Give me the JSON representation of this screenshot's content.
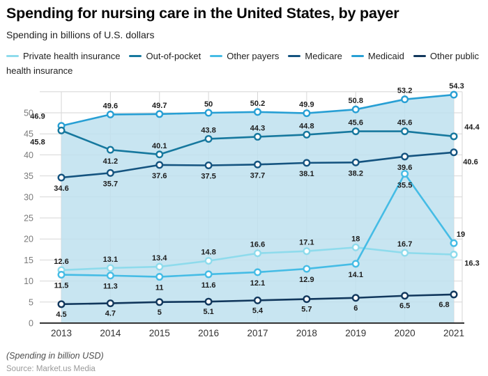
{
  "header": {
    "title": "Spending for nursing care in the United States, by payer",
    "subtitle": "Spending in billions of U.S. dollars"
  },
  "footer": {
    "note": "(Spending in billion USD)",
    "source": "Source: Market.us Media"
  },
  "chart_data": {
    "type": "line",
    "title": "Spending for nursing care in the United States, by payer",
    "subtitle": "Spending in billions of U.S. dollars",
    "x": [
      2013,
      2014,
      2015,
      2016,
      2017,
      2018,
      2019,
      2020,
      2021
    ],
    "xlabel": "",
    "ylabel": "Spending in billions of U.S. dollars",
    "ylim": [
      0,
      55
    ],
    "yticks": [
      0,
      5,
      10,
      15,
      20,
      25,
      30,
      35,
      40,
      45,
      50
    ],
    "grid": true,
    "legend_position": "top",
    "point_labels": true,
    "axis_color": "#333333",
    "grid_color": "#d6d6d6",
    "series": [
      {
        "name": "Private health insurance",
        "color": "#8edbec",
        "values": [
          12.6,
          13.1,
          13.4,
          14.8,
          16.6,
          17.1,
          18,
          16.7,
          16.3
        ]
      },
      {
        "name": "Out-of-pocket",
        "color": "#16789e",
        "values": [
          45.8,
          41.2,
          40.1,
          43.8,
          44.3,
          44.8,
          45.6,
          45.6,
          44.4
        ]
      },
      {
        "name": "Other payers",
        "color": "#45bce5",
        "values": [
          11.5,
          11.3,
          11,
          11.6,
          12.1,
          12.9,
          14.1,
          35.5,
          19
        ]
      },
      {
        "name": "Medicare",
        "color": "#14537f",
        "values": [
          34.6,
          35.7,
          37.6,
          37.5,
          37.7,
          38.1,
          38.2,
          39.6,
          40.6
        ]
      },
      {
        "name": "Medicaid",
        "color": "#279fd4",
        "area": true,
        "fill": "#bee0ef",
        "values": [
          46.9,
          49.6,
          49.7,
          50,
          50.2,
          49.9,
          50.8,
          53.2,
          54.3
        ]
      },
      {
        "name": "Other public health insurance",
        "color": "#11375c",
        "values": [
          4.5,
          4.7,
          5,
          5.1,
          5.4,
          5.7,
          6,
          6.5,
          6.8
        ]
      }
    ]
  }
}
